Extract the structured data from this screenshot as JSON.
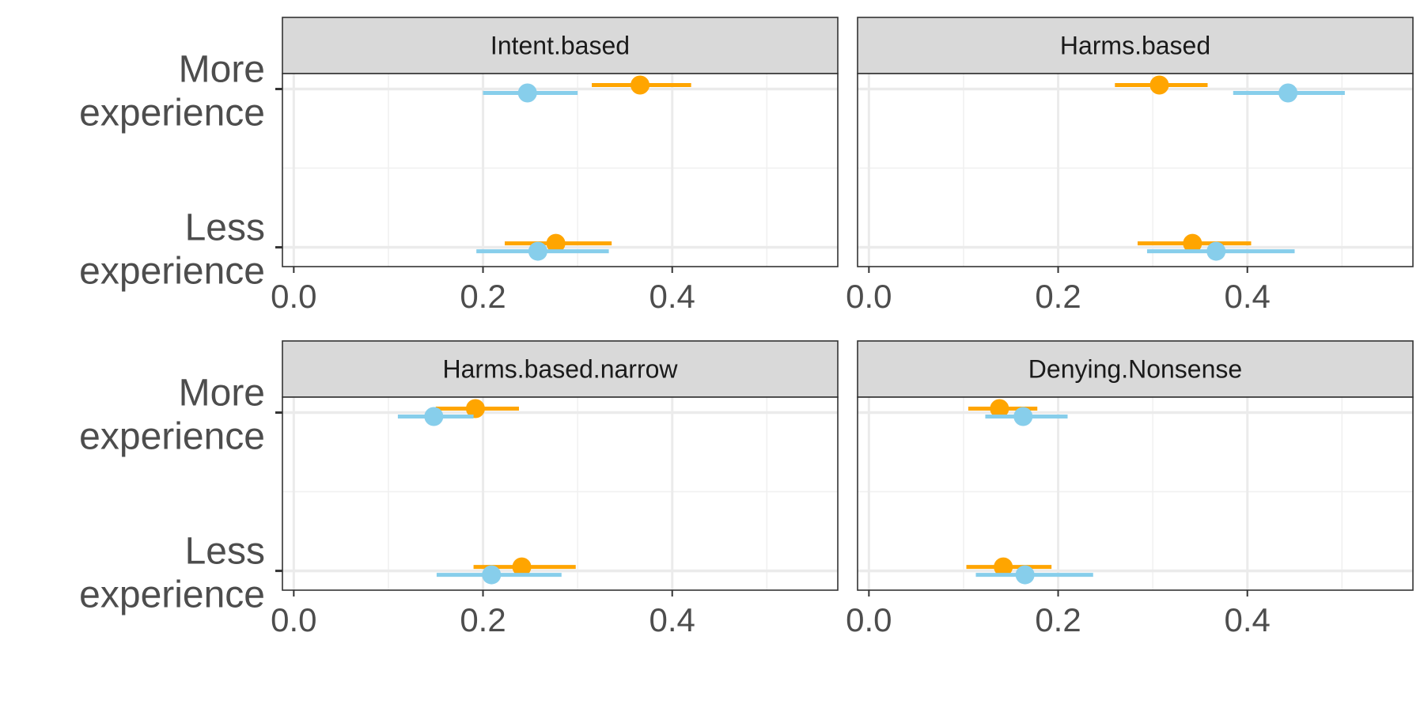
{
  "chart_data": {
    "type": "scatter",
    "subtype": "dot-and-whisker (point estimate with interval), faceted 2x2",
    "title": "",
    "xlabel": "",
    "ylabel": "",
    "xlim": [
      -0.012,
      0.575
    ],
    "xticks": [
      "0.0",
      "0.2",
      "0.4"
    ],
    "xtick_values": [
      0.0,
      0.2,
      0.4
    ],
    "categories": [
      [
        "More",
        "experience"
      ],
      [
        "Less",
        "experience"
      ]
    ],
    "grid": true,
    "legend": "none",
    "colors": {
      "orange": "#FFA500",
      "blue": "#87CEEB"
    },
    "panels": [
      {
        "label": "Intent.based",
        "series": [
          {
            "color": "orange",
            "points": [
              {
                "category": "More experience",
                "estimate": 0.366,
                "low": 0.315,
                "high": 0.42
              },
              {
                "category": "Less experience",
                "estimate": 0.277,
                "low": 0.223,
                "high": 0.336
              }
            ]
          },
          {
            "color": "blue",
            "points": [
              {
                "category": "More experience",
                "estimate": 0.247,
                "low": 0.2,
                "high": 0.3
              },
              {
                "category": "Less experience",
                "estimate": 0.258,
                "low": 0.193,
                "high": 0.333
              }
            ]
          }
        ]
      },
      {
        "label": "Harms.based",
        "series": [
          {
            "color": "orange",
            "points": [
              {
                "category": "More experience",
                "estimate": 0.307,
                "low": 0.26,
                "high": 0.358
              },
              {
                "category": "Less experience",
                "estimate": 0.342,
                "low": 0.284,
                "high": 0.404
              }
            ]
          },
          {
            "color": "blue",
            "points": [
              {
                "category": "More experience",
                "estimate": 0.443,
                "low": 0.385,
                "high": 0.503
              },
              {
                "category": "Less experience",
                "estimate": 0.367,
                "low": 0.294,
                "high": 0.45
              }
            ]
          }
        ]
      },
      {
        "label": "Harms.based.narrow",
        "series": [
          {
            "color": "orange",
            "points": [
              {
                "category": "More experience",
                "estimate": 0.192,
                "low": 0.15,
                "high": 0.238
              },
              {
                "category": "Less experience",
                "estimate": 0.241,
                "low": 0.19,
                "high": 0.298
              }
            ]
          },
          {
            "color": "blue",
            "points": [
              {
                "category": "More experience",
                "estimate": 0.148,
                "low": 0.11,
                "high": 0.19
              },
              {
                "category": "Less experience",
                "estimate": 0.209,
                "low": 0.151,
                "high": 0.283
              }
            ]
          }
        ]
      },
      {
        "label": "Denying.Nonsense",
        "series": [
          {
            "color": "orange",
            "points": [
              {
                "category": "More experience",
                "estimate": 0.138,
                "low": 0.105,
                "high": 0.178
              },
              {
                "category": "Less experience",
                "estimate": 0.142,
                "low": 0.103,
                "high": 0.193
              }
            ]
          },
          {
            "color": "blue",
            "points": [
              {
                "category": "More experience",
                "estimate": 0.163,
                "low": 0.123,
                "high": 0.21
              },
              {
                "category": "Less experience",
                "estimate": 0.165,
                "low": 0.113,
                "high": 0.237
              }
            ]
          }
        ]
      }
    ]
  }
}
